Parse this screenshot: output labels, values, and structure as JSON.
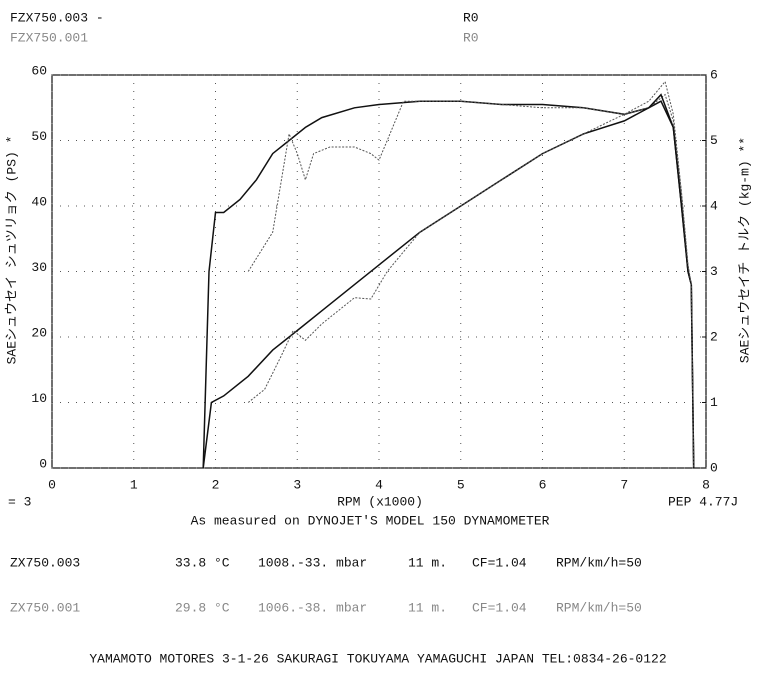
{
  "chart_data": {
    "type": "line",
    "run_a": "FZX750.003 -",
    "run_b": "FZX750.001",
    "setting_a": "R0",
    "setting_b": "R0",
    "left_note": "= 3",
    "right_note": "PEP 4.77J",
    "xlabel": "RPM (x1000)",
    "ylabel": "SAEシュウセイ シュツリョク (PS) *",
    "y2label": "SAEシュウセイチ トルク (kg-m) **",
    "subtitle": "As measured on DYNOJET'S MODEL 150 DYNAMOMETER",
    "xlim": [
      0,
      8
    ],
    "xticks": [
      0,
      1,
      2,
      3,
      4,
      5,
      6,
      7,
      8
    ],
    "ylim": [
      0,
      60
    ],
    "yticks": [
      0,
      10,
      20,
      30,
      40,
      50,
      60
    ],
    "y2lim": [
      0,
      6
    ],
    "y2ticks": [
      0,
      1,
      2,
      3,
      4,
      5,
      6
    ],
    "grid": true,
    "series": [
      {
        "color": "#111111",
        "line_style": "solid",
        "axis": "y2",
        "x": [
          1.85,
          1.92,
          2.0,
          2.1,
          2.3,
          2.5,
          2.7,
          2.9,
          3.1,
          3.3,
          3.7,
          4.0,
          4.5,
          5.0,
          5.5,
          6.0,
          6.5,
          7.0,
          7.3,
          7.45,
          7.6,
          7.7,
          7.78,
          7.82,
          7.85
        ],
        "values": [
          0,
          3.0,
          3.9,
          3.9,
          4.1,
          4.4,
          4.8,
          5.0,
          5.2,
          5.35,
          5.5,
          5.55,
          5.6,
          5.6,
          5.55,
          5.55,
          5.5,
          5.4,
          5.5,
          5.6,
          5.2,
          4.0,
          3.0,
          2.8,
          0
        ]
      },
      {
        "color": "#555555",
        "line_style": "dotted",
        "axis": "y2",
        "x": [
          2.4,
          2.7,
          2.9,
          3.0,
          3.1,
          3.2,
          3.4,
          3.7,
          3.9,
          4.0,
          4.1,
          4.3,
          4.5,
          5.0,
          5.5,
          6.0,
          6.5,
          7.0,
          7.3,
          7.5,
          7.6,
          7.7,
          7.78,
          7.82,
          7.85
        ],
        "values": [
          3.0,
          3.6,
          5.1,
          4.8,
          4.4,
          4.8,
          4.9,
          4.9,
          4.8,
          4.7,
          5.0,
          5.6,
          5.6,
          5.6,
          5.55,
          5.5,
          5.5,
          5.4,
          5.5,
          5.7,
          5.3,
          4.2,
          3.1,
          2.8,
          0
        ]
      },
      {
        "color": "#111111",
        "line_style": "solid",
        "axis": "y",
        "x": [
          1.85,
          1.95,
          2.1,
          2.4,
          2.7,
          3.0,
          3.3,
          3.7,
          4.0,
          4.5,
          5.0,
          5.5,
          6.0,
          6.5,
          7.0,
          7.3,
          7.45,
          7.6,
          7.7,
          7.78,
          7.82,
          7.85
        ],
        "values": [
          0,
          10,
          11,
          14,
          18,
          21,
          24,
          28,
          31,
          36,
          40,
          44,
          48,
          51,
          53,
          55,
          57,
          52,
          40,
          30,
          28,
          0
        ]
      },
      {
        "color": "#555555",
        "line_style": "dotted",
        "axis": "y",
        "x": [
          2.4,
          2.6,
          2.8,
          2.95,
          3.1,
          3.3,
          3.7,
          3.9,
          4.1,
          4.3,
          4.5,
          5.0,
          5.5,
          6.0,
          6.5,
          7.0,
          7.3,
          7.5,
          7.6,
          7.7,
          7.78,
          7.82,
          7.85
        ],
        "values": [
          10,
          12,
          17,
          21,
          19.5,
          22,
          26,
          25.8,
          30,
          33,
          36,
          40,
          44,
          48,
          51,
          54,
          56,
          59,
          54,
          42,
          31,
          28,
          0
        ]
      }
    ]
  },
  "runs": [
    {
      "id": "ZX750.003",
      "temp": "33.8 °C",
      "pressure": "1008.-33. mbar",
      "altitude": "11 m.",
      "cf": "CF=1.04",
      "ratio": "RPM/km/h=50"
    },
    {
      "id": "ZX750.001",
      "temp": "29.8 °C",
      "pressure": "1006.-38. mbar",
      "altitude": "11 m.",
      "cf": "CF=1.04",
      "ratio": "RPM/km/h=50"
    }
  ],
  "footer": "YAMAMOTO MOTORES 3-1-26 SAKURAGI TOKUYAMA YAMAGUCHI JAPAN TEL:0834-26-0122"
}
